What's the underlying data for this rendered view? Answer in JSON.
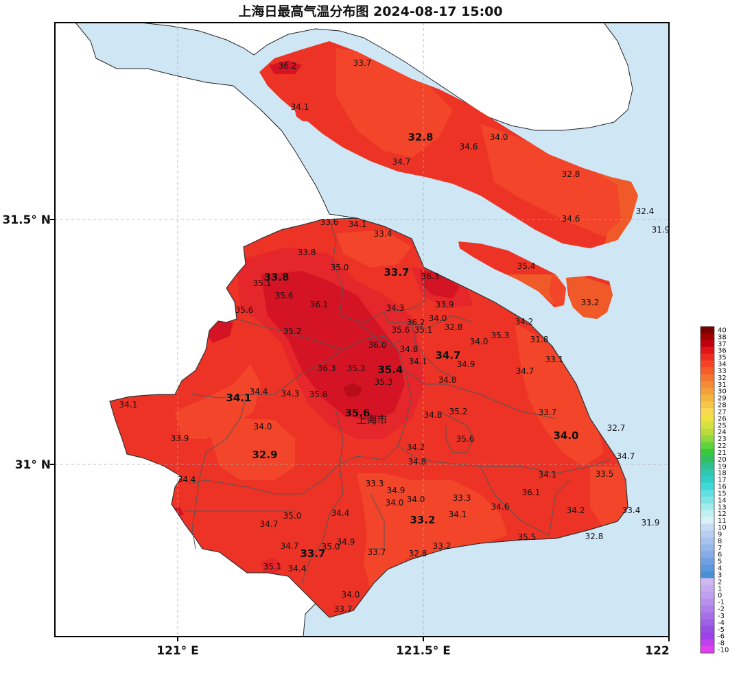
{
  "title": "上海日最高气温分布图 2024-08-17 15:00",
  "axes": {
    "x_ticks": [
      "121° E",
      "121.5° E",
      "122"
    ],
    "y_ticks": [
      "31.5° N",
      "31° N"
    ]
  },
  "city_label": "上海市",
  "colors": {
    "sea": "#cfe6f5",
    "land_outside": "#ffffff",
    "t32": "#f05a28",
    "t33": "#f2452a",
    "t34": "#ec3326",
    "t35": "#e5262a",
    "t36": "#d41424",
    "t37": "#b80c1a"
  },
  "stations": [
    {
      "v": "36.2",
      "x": 419,
      "y": 96,
      "big": false
    },
    {
      "v": "33.7",
      "x": 528,
      "y": 92,
      "big": false
    },
    {
      "v": "34.1",
      "x": 437,
      "y": 156,
      "big": false
    },
    {
      "v": "32.8",
      "x": 613,
      "y": 200,
      "big": true
    },
    {
      "v": "34.0",
      "x": 727,
      "y": 200,
      "big": false
    },
    {
      "v": "34.6",
      "x": 683,
      "y": 214,
      "big": false
    },
    {
      "v": "34.7",
      "x": 585,
      "y": 236,
      "big": false
    },
    {
      "v": "32.8",
      "x": 832,
      "y": 254,
      "big": false
    },
    {
      "v": "32.4",
      "x": 940,
      "y": 308,
      "big": false
    },
    {
      "v": "34.6",
      "x": 832,
      "y": 319,
      "big": false
    },
    {
      "v": "31.9",
      "x": 963,
      "y": 335,
      "big": false
    },
    {
      "v": "33.6",
      "x": 480,
      "y": 324,
      "big": false
    },
    {
      "v": "34.1",
      "x": 521,
      "y": 327,
      "big": false
    },
    {
      "v": "33.4",
      "x": 558,
      "y": 341,
      "big": false
    },
    {
      "v": "33.8",
      "x": 447,
      "y": 368,
      "big": false
    },
    {
      "v": "35.0",
      "x": 495,
      "y": 390,
      "big": false
    },
    {
      "v": "33.7",
      "x": 578,
      "y": 397,
      "big": true
    },
    {
      "v": "35.4",
      "x": 767,
      "y": 388,
      "big": false
    },
    {
      "v": "36.3",
      "x": 627,
      "y": 403,
      "big": false
    },
    {
      "v": "33.8",
      "x": 403,
      "y": 404,
      "big": true
    },
    {
      "v": "35.1",
      "x": 382,
      "y": 413,
      "big": false
    },
    {
      "v": "35.6",
      "x": 414,
      "y": 431,
      "big": false
    },
    {
      "v": "36.1",
      "x": 465,
      "y": 444,
      "big": false
    },
    {
      "v": "33.2",
      "x": 860,
      "y": 441,
      "big": false
    },
    {
      "v": "33.9",
      "x": 648,
      "y": 444,
      "big": false
    },
    {
      "v": "34.3",
      "x": 576,
      "y": 449,
      "big": false
    },
    {
      "v": "35.6",
      "x": 356,
      "y": 452,
      "big": false
    },
    {
      "v": "34.0",
      "x": 638,
      "y": 464,
      "big": false
    },
    {
      "v": "36.2",
      "x": 606,
      "y": 470,
      "big": false
    },
    {
      "v": "34.2",
      "x": 764,
      "y": 469,
      "big": false
    },
    {
      "v": "32.8",
      "x": 661,
      "y": 477,
      "big": false
    },
    {
      "v": "35.6",
      "x": 584,
      "y": 481,
      "big": false
    },
    {
      "v": "35.1",
      "x": 617,
      "y": 481,
      "big": false
    },
    {
      "v": "35.2",
      "x": 426,
      "y": 483,
      "big": false
    },
    {
      "v": "35.3",
      "x": 729,
      "y": 489,
      "big": false
    },
    {
      "v": "31.8",
      "x": 786,
      "y": 495,
      "big": false
    },
    {
      "v": "34.0",
      "x": 698,
      "y": 498,
      "big": false
    },
    {
      "v": "36.0",
      "x": 550,
      "y": 503,
      "big": false
    },
    {
      "v": "34.8",
      "x": 596,
      "y": 509,
      "big": false
    },
    {
      "v": "34.7",
      "x": 653,
      "y": 518,
      "big": true
    },
    {
      "v": "33.1",
      "x": 808,
      "y": 524,
      "big": false
    },
    {
      "v": "34.1",
      "x": 609,
      "y": 527,
      "big": false
    },
    {
      "v": "34.9",
      "x": 679,
      "y": 531,
      "big": false
    },
    {
      "v": "36.3",
      "x": 476,
      "y": 537,
      "big": false
    },
    {
      "v": "35.3",
      "x": 519,
      "y": 537,
      "big": false
    },
    {
      "v": "35.4",
      "x": 569,
      "y": 539,
      "big": true
    },
    {
      "v": "34.7",
      "x": 765,
      "y": 541,
      "big": false
    },
    {
      "v": "35.3",
      "x": 559,
      "y": 557,
      "big": false
    },
    {
      "v": "34.8",
      "x": 652,
      "y": 554,
      "big": false
    },
    {
      "v": "34.4",
      "x": 377,
      "y": 571,
      "big": false
    },
    {
      "v": "34.3",
      "x": 423,
      "y": 574,
      "big": false
    },
    {
      "v": "35.6",
      "x": 464,
      "y": 575,
      "big": false
    },
    {
      "v": "34.1",
      "x": 348,
      "y": 580,
      "big": true
    },
    {
      "v": "34.1",
      "x": 187,
      "y": 590,
      "big": false
    },
    {
      "v": "35.2",
      "x": 668,
      "y": 600,
      "big": false
    },
    {
      "v": "35.6",
      "x": 521,
      "y": 602,
      "big": true
    },
    {
      "v": "34.8",
      "x": 631,
      "y": 605,
      "big": false
    },
    {
      "v": "33.7",
      "x": 798,
      "y": 601,
      "big": false
    },
    {
      "v": "34.0",
      "x": 383,
      "y": 622,
      "big": false
    },
    {
      "v": "32.7",
      "x": 898,
      "y": 624,
      "big": false
    },
    {
      "v": "34.0",
      "x": 825,
      "y": 635,
      "big": true
    },
    {
      "v": "35.6",
      "x": 678,
      "y": 640,
      "big": false
    },
    {
      "v": "33.9",
      "x": 262,
      "y": 639,
      "big": false
    },
    {
      "v": "34.2",
      "x": 606,
      "y": 652,
      "big": false
    },
    {
      "v": "32.9",
      "x": 386,
      "y": 663,
      "big": true
    },
    {
      "v": "34.7",
      "x": 912,
      "y": 665,
      "big": false
    },
    {
      "v": "34.8",
      "x": 608,
      "y": 673,
      "big": false
    },
    {
      "v": "34.1",
      "x": 798,
      "y": 692,
      "big": false
    },
    {
      "v": "33.5",
      "x": 881,
      "y": 691,
      "big": false
    },
    {
      "v": "34.4",
      "x": 272,
      "y": 699,
      "big": false
    },
    {
      "v": "33.3",
      "x": 546,
      "y": 705,
      "big": false
    },
    {
      "v": "34.9",
      "x": 577,
      "y": 715,
      "big": false
    },
    {
      "v": "36.1",
      "x": 774,
      "y": 718,
      "big": false
    },
    {
      "v": "34.0",
      "x": 606,
      "y": 728,
      "big": false
    },
    {
      "v": "33.3",
      "x": 673,
      "y": 726,
      "big": false
    },
    {
      "v": "34.0",
      "x": 575,
      "y": 733,
      "big": false
    },
    {
      "v": "34.6",
      "x": 729,
      "y": 739,
      "big": false
    },
    {
      "v": "34.2",
      "x": 839,
      "y": 744,
      "big": false
    },
    {
      "v": "33.4",
      "x": 920,
      "y": 744,
      "big": false
    },
    {
      "v": "34.4",
      "x": 496,
      "y": 748,
      "big": false
    },
    {
      "v": "35.0",
      "x": 426,
      "y": 752,
      "big": false
    },
    {
      "v": "34.1",
      "x": 667,
      "y": 750,
      "big": false
    },
    {
      "v": "33.2",
      "x": 616,
      "y": 758,
      "big": true
    },
    {
      "v": "34.7",
      "x": 392,
      "y": 764,
      "big": false
    },
    {
      "v": "31.9",
      "x": 948,
      "y": 762,
      "big": false
    },
    {
      "v": "35.5",
      "x": 768,
      "y": 783,
      "big": false
    },
    {
      "v": "32.8",
      "x": 866,
      "y": 782,
      "big": false
    },
    {
      "v": "34.9",
      "x": 504,
      "y": 790,
      "big": false
    },
    {
      "v": "34.7",
      "x": 422,
      "y": 796,
      "big": false
    },
    {
      "v": "35.0",
      "x": 482,
      "y": 797,
      "big": false
    },
    {
      "v": "33.2",
      "x": 644,
      "y": 796,
      "big": false
    },
    {
      "v": "33.7",
      "x": 456,
      "y": 807,
      "big": true
    },
    {
      "v": "33.7",
      "x": 549,
      "y": 805,
      "big": false
    },
    {
      "v": "32.8",
      "x": 609,
      "y": 807,
      "big": false
    },
    {
      "v": "35.1",
      "x": 397,
      "y": 826,
      "big": false
    },
    {
      "v": "34.4",
      "x": 433,
      "y": 829,
      "big": false
    },
    {
      "v": "34.0",
      "x": 511,
      "y": 867,
      "big": false
    },
    {
      "v": "33.7",
      "x": 500,
      "y": 888,
      "big": false
    }
  ],
  "colorbar": {
    "levels": [
      "40",
      "38",
      "37",
      "36",
      "35",
      "34",
      "33",
      "32",
      "31",
      "30",
      "29",
      "28",
      "27",
      "26",
      "25",
      "24",
      "23",
      "22",
      "21",
      "20",
      "19",
      "18",
      "17",
      "16",
      "15",
      "14",
      "13",
      "12",
      "11",
      "10",
      "9",
      "8",
      "7",
      "6",
      "5",
      "4",
      "3",
      "2",
      "1",
      "0",
      "-1",
      "-2",
      "-3",
      "-4",
      "-5",
      "-6",
      "-8",
      "-10"
    ],
    "colors": [
      "#7a0000",
      "#a00000",
      "#c00010",
      "#e01418",
      "#f02c20",
      "#f44626",
      "#f45d2a",
      "#f47530",
      "#f48a36",
      "#f4a03c",
      "#f4b440",
      "#f6c648",
      "#f8d850",
      "#f0e040",
      "#d8e040",
      "#b8dc3c",
      "#90d83c",
      "#60d23c",
      "#38c83c",
      "#30c060",
      "#30c090",
      "#30c8b0",
      "#30d0c8",
      "#40d8d8",
      "#60e0e0",
      "#80e4e4",
      "#a0ecec",
      "#c0f0f0",
      "#d8f0f8",
      "#c8dcf4",
      "#b8d0f0",
      "#a8c4ee",
      "#98b8ea",
      "#88ace6",
      "#70a0e2",
      "#5c98de",
      "#4890d8",
      "#d0b8f0",
      "#c8acf0",
      "#c0a0ee",
      "#b890ec",
      "#b080ea",
      "#a870e8",
      "#a060e6",
      "#9850e4",
      "#a040e8",
      "#c040ec",
      "#e040f0"
    ]
  }
}
